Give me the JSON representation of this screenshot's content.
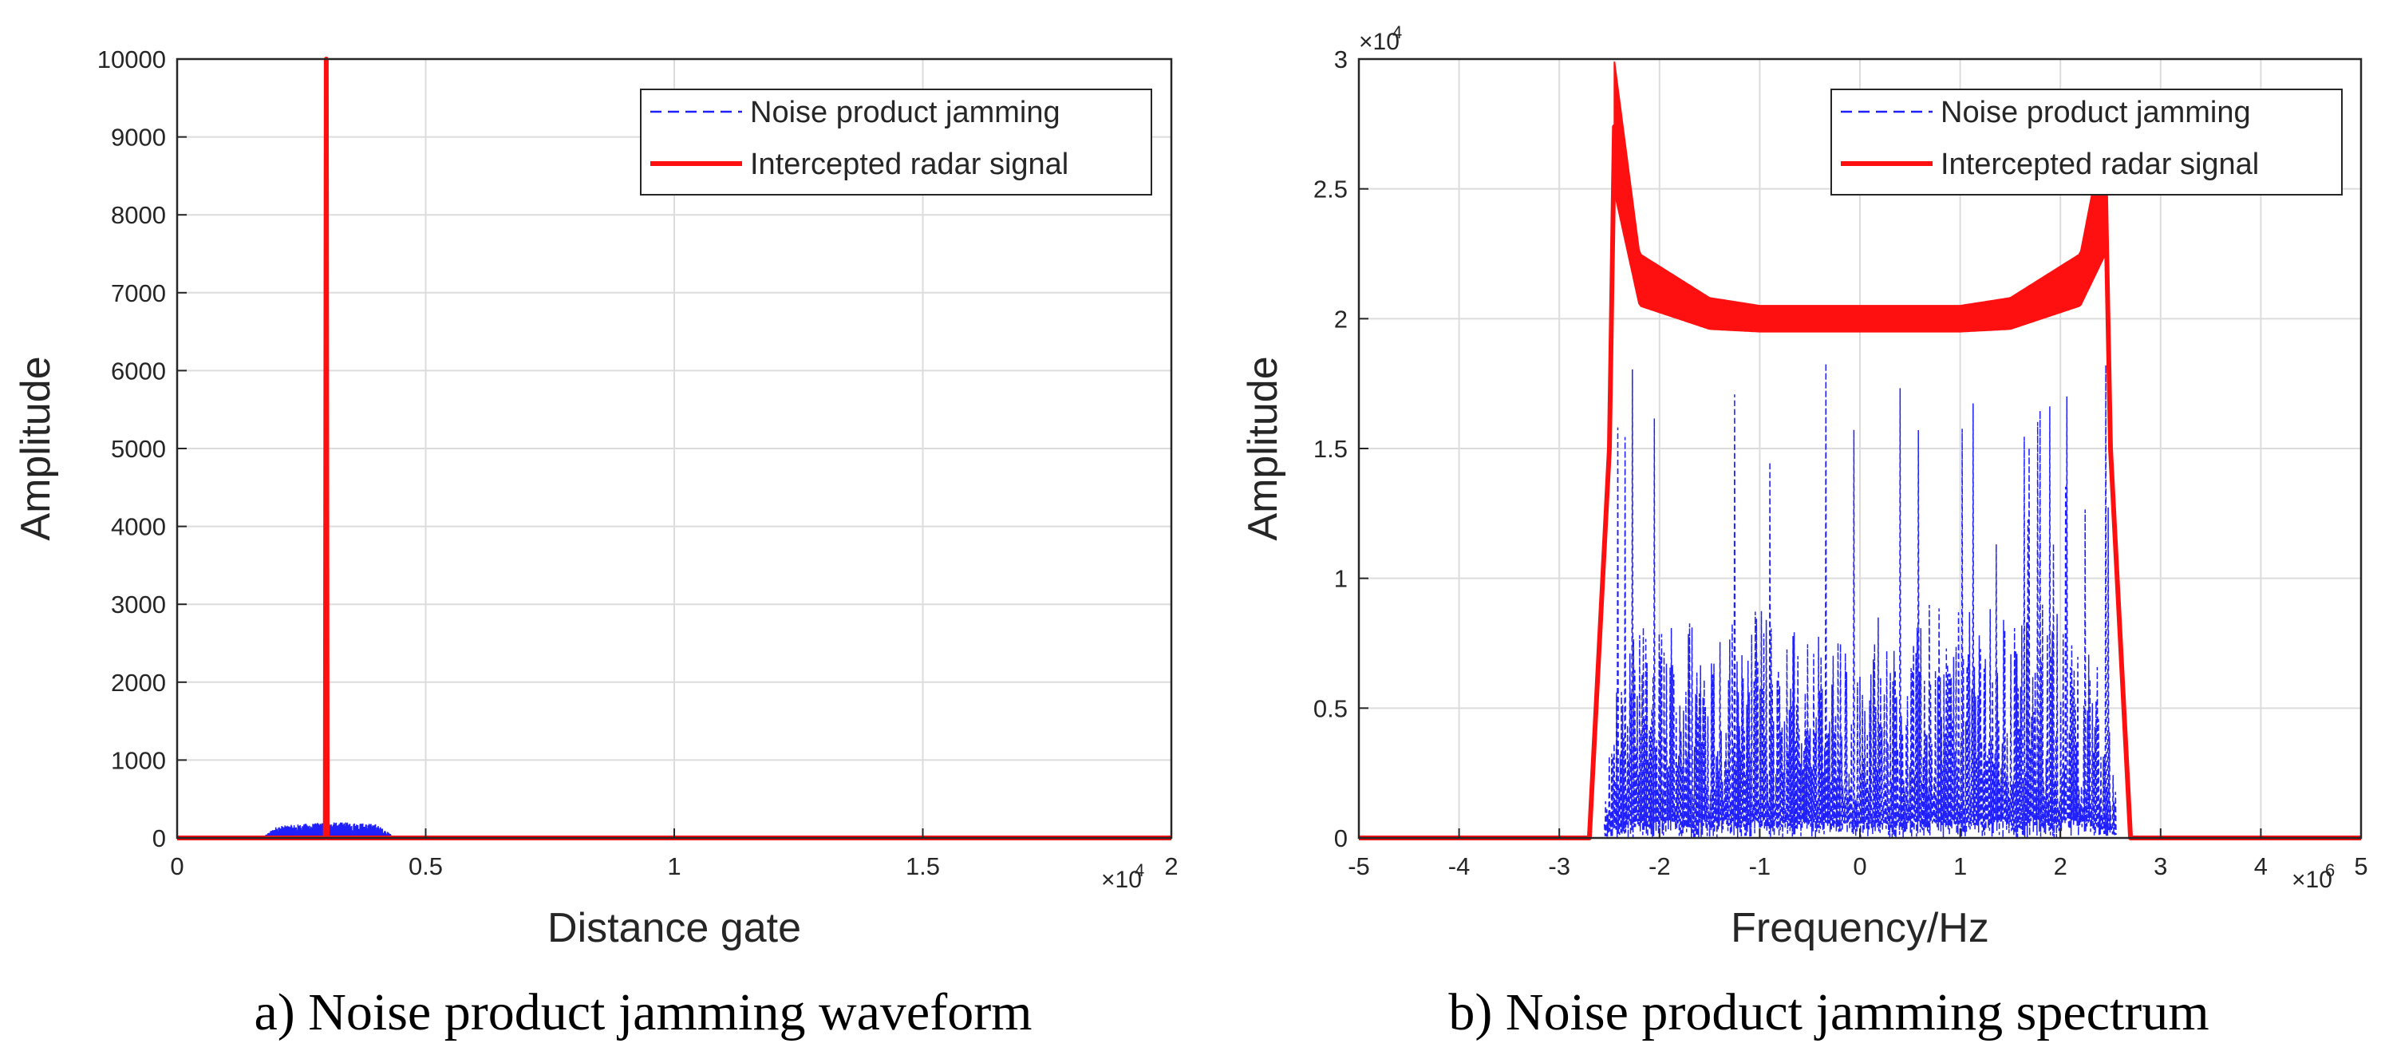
{
  "colors": {
    "jamming": "#1f1fff",
    "radar": "#ff1010",
    "grid": "#dcdcdc",
    "axis": "#262626"
  },
  "chart_data": [
    {
      "type": "line",
      "caption": "a) Noise product jamming waveform",
      "xlabel": "Distance gate",
      "ylabel": "Amplitude",
      "x_exponent": "×10",
      "x_exponent_power": "4",
      "xlim": [
        0,
        2
      ],
      "ylim": [
        0,
        10000
      ],
      "xticks": [
        0,
        0.5,
        1,
        1.5,
        2
      ],
      "xtick_labels": [
        "0",
        "0.5",
        "1",
        "1.5",
        "2"
      ],
      "yticks": [
        0,
        1000,
        2000,
        3000,
        4000,
        5000,
        6000,
        7000,
        8000,
        9000,
        10000
      ],
      "ytick_labels": [
        "0",
        "1000",
        "2000",
        "3000",
        "4000",
        "5000",
        "6000",
        "7000",
        "8000",
        "9000",
        "10000"
      ],
      "grid": true,
      "legend_position": "top-right",
      "series": [
        {
          "name": "Noise product jamming",
          "style": "dashed",
          "color": "#1f1fff",
          "x": [
            0,
            0.17,
            0.2,
            0.25,
            0.3,
            0.35,
            0.4,
            0.43,
            2
          ],
          "y": [
            0,
            0,
            150,
            180,
            200,
            200,
            180,
            50,
            0
          ]
        },
        {
          "name": "Intercepted radar signal",
          "style": "solid",
          "color": "#ff1010",
          "x": [
            0,
            0.298,
            0.3,
            0.302,
            2
          ],
          "y": [
            0,
            0,
            10000,
            0,
            0
          ]
        }
      ]
    },
    {
      "type": "line",
      "caption": "b) Noise product jamming spectrum",
      "xlabel": "Frequency/Hz",
      "ylabel": "Amplitude",
      "x_exponent": "×10",
      "x_exponent_power": "6",
      "y_exponent": "×10",
      "y_exponent_power": "4",
      "xlim": [
        -5,
        5
      ],
      "ylim": [
        0,
        3
      ],
      "xticks": [
        -5,
        -4,
        -3,
        -2,
        -1,
        0,
        1,
        2,
        3,
        4,
        5
      ],
      "xtick_labels": [
        "-5",
        "-4",
        "-3",
        "-2",
        "-1",
        "0",
        "1",
        "2",
        "3",
        "4",
        "5"
      ],
      "yticks": [
        0,
        0.5,
        1,
        1.5,
        2,
        2.5,
        3
      ],
      "ytick_labels": [
        "0",
        "0.5",
        "1",
        "1.5",
        "2",
        "2.5",
        "3"
      ],
      "grid": true,
      "legend_position": "top-right",
      "series": [
        {
          "name": "Noise product jamming",
          "style": "dashed",
          "color": "#1f1fff",
          "x": [
            -5,
            -2.6,
            -2.4,
            -2,
            -1,
            0,
            1,
            2,
            2.4,
            2.6,
            5
          ],
          "y": [
            0,
            0,
            0.6,
            0.7,
            0.7,
            0.6,
            0.7,
            0.75,
            0.6,
            0,
            0
          ],
          "peak_max": 1.9
        },
        {
          "name": "Intercepted radar signal",
          "style": "solid",
          "color": "#ff1010",
          "x": [
            -5,
            -2.7,
            -2.5,
            -2.45,
            -2.2,
            -1.5,
            -1,
            0,
            1,
            1.5,
            2.2,
            2.45,
            2.5,
            2.7,
            5
          ],
          "y": [
            0,
            0,
            1.5,
            2.74,
            2.15,
            2.02,
            2.0,
            2.0,
            2.0,
            2.02,
            2.15,
            2.5,
            1.5,
            0,
            0
          ],
          "band_half_width": [
            0.25,
            0.1,
            0.06,
            0.05,
            0.05,
            0.05,
            0.06,
            0.1,
            0.25
          ]
        }
      ]
    }
  ]
}
